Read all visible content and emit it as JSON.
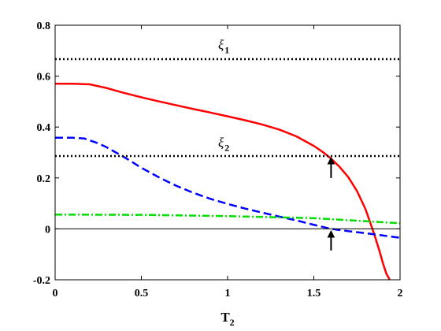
{
  "chart_data": {
    "type": "line",
    "title": "",
    "xlabel": "T",
    "xlabel_sub": "2",
    "ylabel": "",
    "xlim": [
      0,
      2
    ],
    "ylim": [
      -0.2,
      0.8
    ],
    "xticks": [
      "0",
      "0.5",
      "1",
      "1.5",
      "2"
    ],
    "yticks": [
      "-0.2",
      "0",
      "0.2",
      "0.4",
      "0.6",
      "0.8"
    ],
    "grid": false,
    "legend": "none",
    "series": [
      {
        "color": "#ff0000",
        "style": "solid",
        "x": [
          0,
          0.1,
          0.2,
          0.3,
          0.4,
          0.5,
          0.6,
          0.7,
          0.8,
          0.9,
          1.0,
          1.1,
          1.2,
          1.3,
          1.4,
          1.5,
          1.55,
          1.6,
          1.65,
          1.7,
          1.75,
          1.8,
          1.85,
          1.88,
          1.9,
          1.92,
          1.94
        ],
        "y": [
          0.57,
          0.57,
          0.568,
          0.553,
          0.534,
          0.517,
          0.501,
          0.486,
          0.471,
          0.457,
          0.442,
          0.427,
          0.41,
          0.39,
          0.363,
          0.326,
          0.303,
          0.276,
          0.243,
          0.203,
          0.149,
          0.077,
          -0.02,
          -0.085,
          -0.133,
          -0.175,
          -0.2
        ]
      },
      {
        "color": "#0000ff",
        "style": "dashed",
        "x": [
          0,
          0.1,
          0.17,
          0.25,
          0.3,
          0.4,
          0.5,
          0.6,
          0.7,
          0.8,
          0.9,
          1.0,
          1.1,
          1.2,
          1.3,
          1.4,
          1.5,
          1.6,
          1.7,
          1.8,
          1.9,
          2.0
        ],
        "y": [
          0.358,
          0.358,
          0.355,
          0.336,
          0.32,
          0.282,
          0.24,
          0.203,
          0.17,
          0.142,
          0.118,
          0.098,
          0.08,
          0.064,
          0.048,
          0.033,
          0.016,
          0.0,
          -0.009,
          -0.017,
          -0.026,
          -0.035
        ]
      },
      {
        "color": "#00dd00",
        "style": "dashdot",
        "x": [
          0,
          0.5,
          1.0,
          1.5,
          2.0
        ],
        "y": [
          0.056,
          0.055,
          0.05,
          0.042,
          0.022
        ]
      },
      {
        "color": "#000000",
        "style": "dotted",
        "x": [
          0,
          2
        ],
        "y": [
          0.667,
          0.667
        ]
      },
      {
        "color": "#000000",
        "style": "dotted",
        "x": [
          0,
          2
        ],
        "y": [
          0.286,
          0.286
        ]
      },
      {
        "color": "#000000",
        "style": "thin",
        "x": [
          0,
          2
        ],
        "y": [
          0,
          0
        ]
      }
    ],
    "annotations": [
      {
        "text": "ξ",
        "sub": "1",
        "x": 1.0,
        "y": 0.705
      },
      {
        "text": "ξ",
        "sub": "2",
        "x": 1.0,
        "y": 0.322
      }
    ],
    "arrows": [
      {
        "x": 1.6,
        "y_from": 0.2,
        "y_to": 0.28
      },
      {
        "x": 1.6,
        "y_from": -0.085,
        "y_to": -0.008
      }
    ]
  }
}
